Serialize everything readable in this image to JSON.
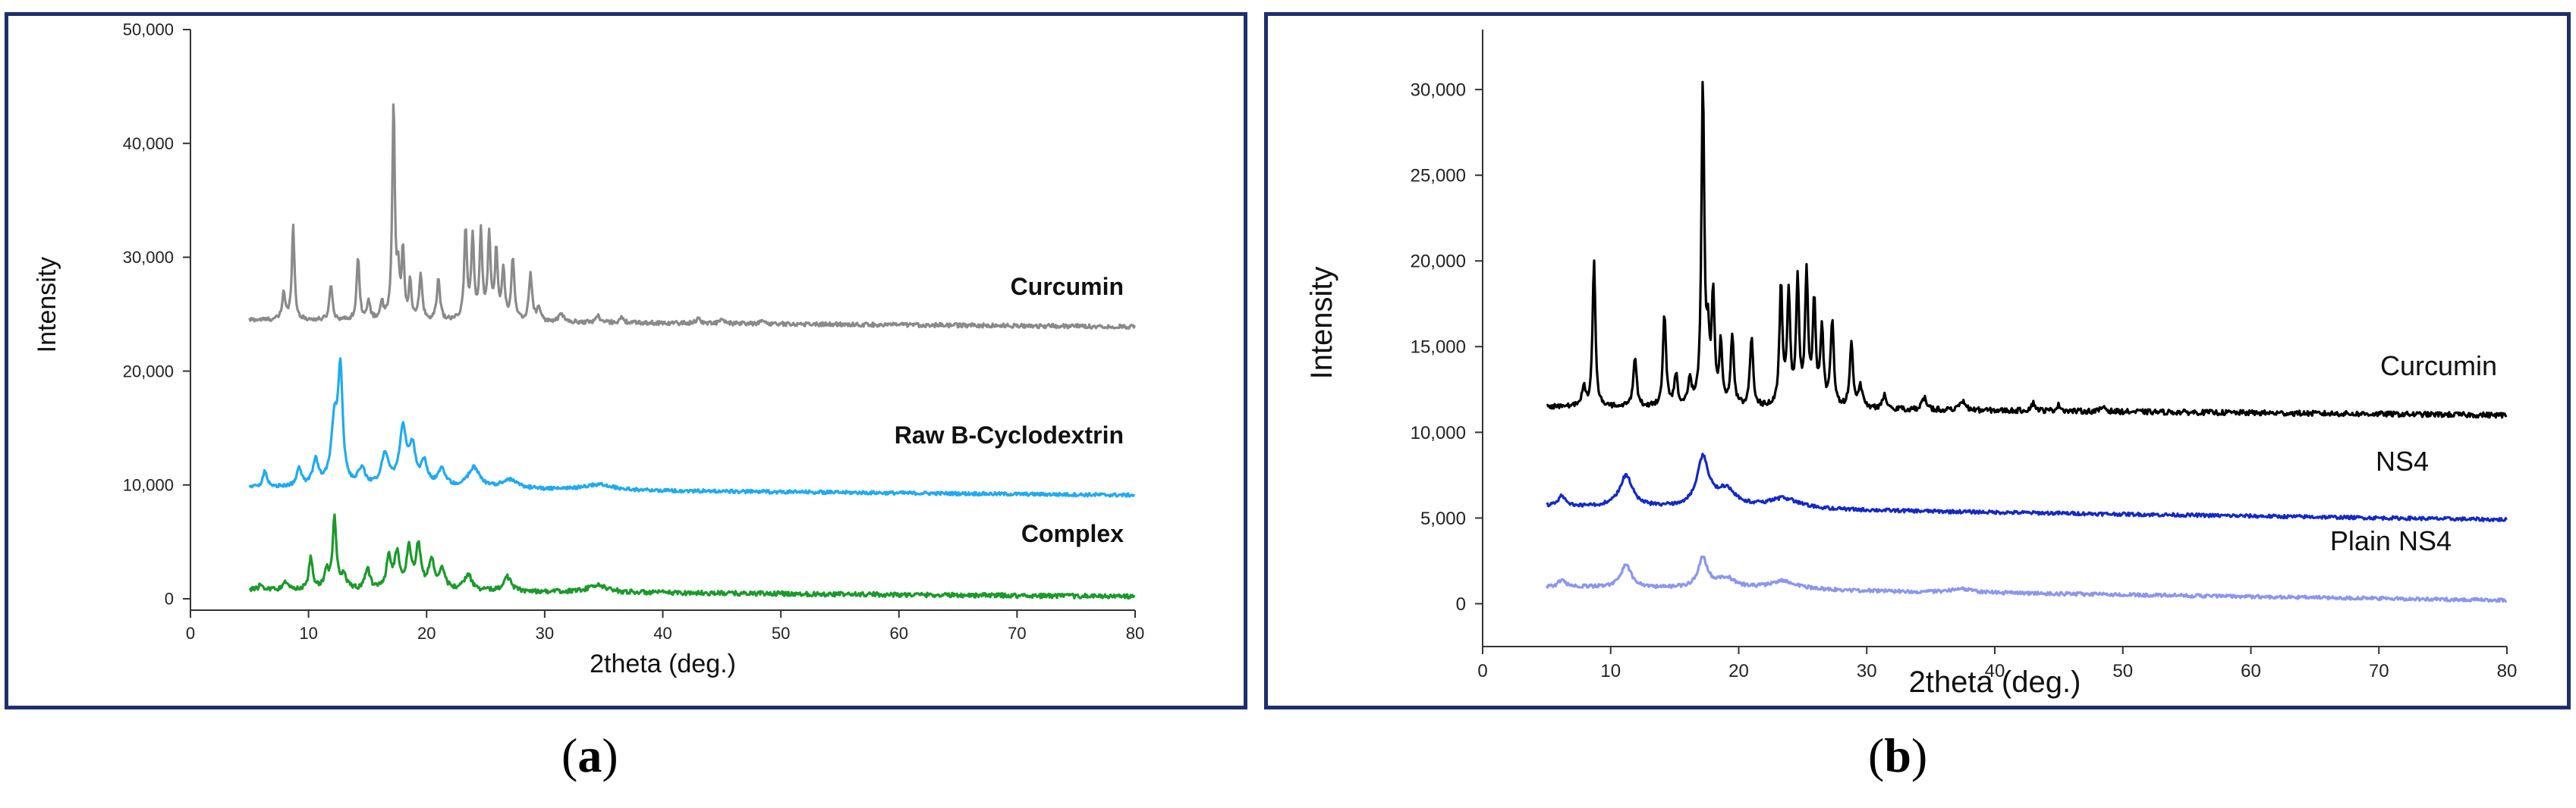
{
  "figure": {
    "captions": [
      {
        "prefix": "(",
        "letter": "a",
        "suffix": ")"
      },
      {
        "prefix": "(",
        "letter": "b",
        "suffix": ")"
      }
    ]
  },
  "chart_data": [
    {
      "type": "line",
      "panel": "a",
      "title": "",
      "xlabel": "2theta (deg.)",
      "ylabel": "Intensity",
      "xlim": [
        0,
        80
      ],
      "ylim": [
        -1000,
        50000
      ],
      "xticks": [
        0,
        10,
        20,
        30,
        40,
        50,
        60,
        70,
        80
      ],
      "yticks": [
        0,
        10000,
        20000,
        30000,
        40000,
        50000
      ],
      "ytick_labels": [
        "0",
        "10,000",
        "20,000",
        "30,000",
        "40,000",
        "50,000"
      ],
      "series": [
        {
          "name": "Curcumin",
          "color": "#8a8a8a",
          "x_range": [
            5,
            80
          ],
          "baseline_start": 24500,
          "baseline_end": 23900,
          "noise": 180,
          "peaks": [
            [
              7.9,
              2400,
              0.15
            ],
            [
              8.7,
              8500,
              0.13
            ],
            [
              11.9,
              3200,
              0.15
            ],
            [
              14.2,
              5600,
              0.14
            ],
            [
              15.1,
              1600,
              0.15
            ],
            [
              16.2,
              1500,
              0.15
            ],
            [
              17.2,
              19000,
              0.13
            ],
            [
              17.6,
              3500,
              0.13
            ],
            [
              18.0,
              6000,
              0.13
            ],
            [
              18.6,
              3200,
              0.13
            ],
            [
              19.5,
              4000,
              0.15
            ],
            [
              21.0,
              3800,
              0.15
            ],
            [
              23.3,
              8000,
              0.14
            ],
            [
              23.9,
              7200,
              0.14
            ],
            [
              24.6,
              7500,
              0.14
            ],
            [
              25.3,
              7500,
              0.14
            ],
            [
              25.9,
              6000,
              0.14
            ],
            [
              26.5,
              4500,
              0.14
            ],
            [
              27.3,
              5500,
              0.15
            ],
            [
              28.8,
              4200,
              0.15
            ],
            [
              29.5,
              1200,
              0.2
            ],
            [
              31.4,
              800,
              0.2
            ],
            [
              34.5,
              600,
              0.2
            ],
            [
              36.5,
              400,
              0.2
            ],
            [
              43,
              450,
              0.2
            ],
            [
              45,
              350,
              0.2
            ],
            [
              48.5,
              300,
              0.2
            ]
          ]
        },
        {
          "name": "Raw B-Cyclodextrin",
          "color": "#20aaf0",
          "x_range": [
            5,
            80
          ],
          "baseline_start": 9800,
          "baseline_end": 9100,
          "noise": 150,
          "peaks": [
            [
              6.3,
              1400,
              0.2
            ],
            [
              9.2,
              1500,
              0.25
            ],
            [
              10.6,
              2200,
              0.3
            ],
            [
              12.2,
              5500,
              0.35
            ],
            [
              12.7,
              9500,
              0.22
            ],
            [
              14.5,
              1500,
              0.35
            ],
            [
              16.5,
              2800,
              0.4
            ],
            [
              18.0,
              5000,
              0.35
            ],
            [
              18.8,
              3200,
              0.3
            ],
            [
              19.8,
              2000,
              0.35
            ],
            [
              21.3,
              1500,
              0.4
            ],
            [
              24.0,
              1800,
              0.6
            ],
            [
              27.0,
              800,
              0.8
            ],
            [
              34.5,
              500,
              1.5
            ]
          ]
        },
        {
          "name": "Complex",
          "color": "#1a9a2a",
          "x_range": [
            5,
            80
          ],
          "baseline_start": 800,
          "baseline_end": 200,
          "noise": 200,
          "peaks": [
            [
              6.0,
              500,
              0.2
            ],
            [
              8.0,
              600,
              0.25
            ],
            [
              10.2,
              2800,
              0.2
            ],
            [
              11.5,
              1600,
              0.2
            ],
            [
              12.2,
              6200,
              0.2
            ],
            [
              13.0,
              1200,
              0.25
            ],
            [
              15.0,
              1800,
              0.25
            ],
            [
              16.8,
              2800,
              0.25
            ],
            [
              17.5,
              3000,
              0.25
            ],
            [
              18.5,
              3500,
              0.25
            ],
            [
              19.3,
              3800,
              0.25
            ],
            [
              20.4,
              2500,
              0.3
            ],
            [
              21.3,
              1800,
              0.3
            ],
            [
              23.5,
              1400,
              0.4
            ],
            [
              26.8,
              1300,
              0.4
            ],
            [
              34.5,
              600,
              1.0
            ]
          ]
        }
      ]
    },
    {
      "type": "line",
      "panel": "b",
      "title": "",
      "xlabel": "2theta (deg.)",
      "ylabel": "Intensity",
      "xlim": [
        0,
        80
      ],
      "ylim": [
        -2500,
        33500
      ],
      "xticks": [
        0,
        10,
        20,
        30,
        40,
        50,
        60,
        70,
        80
      ],
      "yticks": [
        0,
        5000,
        10000,
        15000,
        20000,
        25000,
        30000
      ],
      "ytick_labels": [
        "0",
        "5,000",
        "10,000",
        "15,000",
        "20,000",
        "25,000",
        "30,000"
      ],
      "series": [
        {
          "name": "Curcumin",
          "color": "#000000",
          "x_range": [
            5,
            80
          ],
          "baseline_start": 11500,
          "baseline_end": 11000,
          "noise": 150,
          "peaks": [
            [
              7.9,
              1200,
              0.15
            ],
            [
              8.7,
              8500,
              0.13
            ],
            [
              11.9,
              3000,
              0.15
            ],
            [
              14.2,
              5500,
              0.14
            ],
            [
              15.1,
              1800,
              0.15
            ],
            [
              16.2,
              1500,
              0.15
            ],
            [
              17.2,
              19000,
              0.13
            ],
            [
              17.6,
              3500,
              0.13
            ],
            [
              18.0,
              6500,
              0.13
            ],
            [
              18.6,
              3500,
              0.13
            ],
            [
              19.5,
              4000,
              0.15
            ],
            [
              21.0,
              4000,
              0.15
            ],
            [
              23.3,
              7000,
              0.14
            ],
            [
              23.9,
              6500,
              0.14
            ],
            [
              24.6,
              7200,
              0.14
            ],
            [
              25.3,
              7700,
              0.14
            ],
            [
              25.9,
              6000,
              0.14
            ],
            [
              26.5,
              4500,
              0.14
            ],
            [
              27.3,
              5000,
              0.15
            ],
            [
              28.8,
              3800,
              0.15
            ],
            [
              29.5,
              1200,
              0.2
            ],
            [
              31.4,
              800,
              0.2
            ],
            [
              34.5,
              700,
              0.2
            ],
            [
              37.5,
              500,
              0.25
            ],
            [
              43,
              450,
              0.2
            ],
            [
              45,
              350,
              0.2
            ],
            [
              48.5,
              300,
              0.2
            ]
          ]
        },
        {
          "name": "NS4",
          "color": "#1428c8",
          "x_range": [
            5,
            80
          ],
          "baseline_start": 5700,
          "baseline_end": 4900,
          "noise": 100,
          "peaks": [
            [
              6.2,
              600,
              0.3
            ],
            [
              11.2,
              1800,
              0.6
            ],
            [
              17.2,
              2800,
              0.55
            ],
            [
              19.0,
              1000,
              1.0
            ],
            [
              23.5,
              600,
              1.5
            ]
          ]
        },
        {
          "name": "Plain NS4",
          "color": "#8c96ee",
          "x_range": [
            5,
            80
          ],
          "baseline_start": 1000,
          "baseline_end": 200,
          "noise": 100,
          "peaks": [
            [
              6.2,
              400,
              0.3
            ],
            [
              11.2,
              1300,
              0.5
            ],
            [
              17.2,
              1700,
              0.45
            ],
            [
              19.0,
              600,
              0.9
            ],
            [
              23.5,
              500,
              1.4
            ],
            [
              37.5,
              200,
              1.0
            ]
          ]
        }
      ]
    }
  ]
}
